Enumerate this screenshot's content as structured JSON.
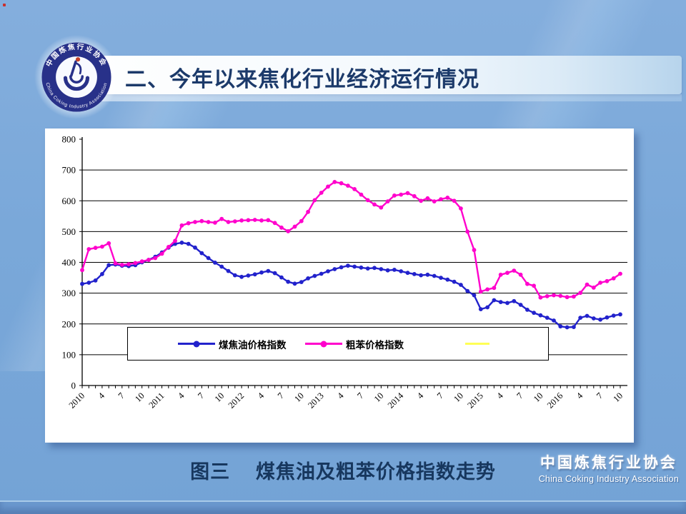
{
  "slide": {
    "title": "二、今年以来焦化行业经济运行情况",
    "caption": "图三　 煤焦油及粗苯价格指数走势",
    "footer": {
      "org_cn": "中国炼焦行业协会",
      "org_en": "China Coking Industry Association"
    }
  },
  "logo": {
    "ring_top": "中国炼焦行业协会",
    "ring_bottom": "China Coking Industry Association"
  },
  "colors": {
    "background": "#7AA8D9",
    "title_text": "#1C3A6A",
    "panel": "#FFFFFF",
    "grid": "#000000",
    "coal_tar_line": "#2222CC",
    "benzene_line": "#FF00CC",
    "legend_extra_line": "#FFFF55"
  },
  "chart_data": {
    "type": "line",
    "title": "",
    "grid": true,
    "y_axis": {
      "min": 0,
      "max": 800,
      "step": 100
    },
    "x_axis": {
      "months_per_label": 3,
      "tick_labels": [
        "2010",
        "4",
        "7",
        "10",
        "2011",
        "4",
        "7",
        "10",
        "2012",
        "4",
        "7",
        "10",
        "2013",
        "4",
        "7",
        "10",
        "2014",
        "4",
        "7",
        "10",
        "2015",
        "4",
        "7",
        "10",
        "2016",
        "4",
        "7",
        "10"
      ]
    },
    "legend": {
      "position": "bottom-center-box"
    },
    "series": [
      {
        "name": "煤焦油价格指数",
        "color": "#2222CC",
        "marker": "circle",
        "values": [
          330,
          334,
          341,
          362,
          391,
          393,
          389,
          388,
          391,
          400,
          408,
          418,
          432,
          448,
          460,
          464,
          460,
          448,
          430,
          414,
          399,
          386,
          372,
          358,
          353,
          357,
          361,
          367,
          372,
          365,
          351,
          337,
          331,
          336,
          348,
          356,
          363,
          371,
          378,
          384,
          389,
          386,
          383,
          380,
          382,
          378,
          374,
          376,
          371,
          366,
          362,
          358,
          360,
          356,
          350,
          344,
          337,
          327,
          307,
          293,
          248,
          254,
          277,
          271,
          268,
          274,
          262,
          246,
          236,
          228,
          220,
          211,
          192,
          189,
          190,
          220,
          226,
          218,
          214,
          221,
          227,
          231
        ]
      },
      {
        "name": "粗苯价格指数",
        "color": "#FF00CC",
        "marker": "circle",
        "values": [
          375,
          443,
          447,
          451,
          462,
          397,
          392,
          394,
          398,
          403,
          408,
          414,
          428,
          450,
          470,
          520,
          527,
          531,
          534,
          531,
          529,
          541,
          531,
          533,
          536,
          537,
          538,
          536,
          537,
          528,
          513,
          501,
          516,
          534,
          564,
          602,
          626,
          646,
          661,
          657,
          649,
          638,
          620,
          602,
          588,
          578,
          598,
          617,
          620,
          625,
          615,
          600,
          608,
          598,
          605,
          610,
          600,
          575,
          500,
          440,
          305,
          312,
          317,
          360,
          366,
          373,
          360,
          330,
          324,
          286,
          290,
          293,
          291,
          287,
          289,
          301,
          328,
          318,
          334,
          339,
          348,
          363
        ]
      },
      {
        "name": "",
        "color": "#FFFF55",
        "marker": "none",
        "values": []
      }
    ]
  }
}
